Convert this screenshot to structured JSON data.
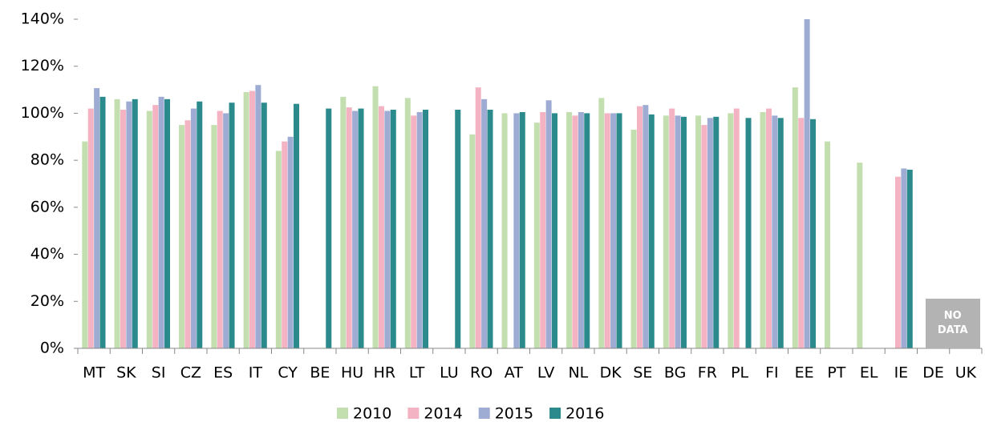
{
  "chart_data": {
    "type": "bar",
    "categories": [
      "MT",
      "SK",
      "SI",
      "CZ",
      "ES",
      "IT",
      "CY",
      "BE",
      "HU",
      "HR",
      "LT",
      "LU",
      "RO",
      "AT",
      "LV",
      "NL",
      "DK",
      "SE",
      "BG",
      "FR",
      "PL",
      "FI",
      "EE",
      "PT",
      "EL",
      "IE",
      "DE",
      "UK"
    ],
    "series": [
      {
        "name": "2010",
        "color": "#c3dfb0",
        "values": [
          88,
          106,
          101,
          95,
          95,
          109,
          84,
          null,
          107,
          111.5,
          106.5,
          null,
          91,
          100,
          96,
          100.5,
          106.5,
          93,
          99,
          99,
          100,
          100.5,
          111,
          88,
          79,
          null,
          null,
          null
        ]
      },
      {
        "name": "2014",
        "color": "#f4b3c2",
        "values": [
          102,
          101.5,
          103.5,
          97,
          101,
          109.5,
          88,
          null,
          102.5,
          103,
          99,
          null,
          111,
          null,
          100.5,
          99,
          100,
          103,
          102,
          95,
          102,
          102,
          98,
          null,
          null,
          73,
          null,
          null
        ]
      },
      {
        "name": "2015",
        "color": "#9eacd4",
        "values": [
          110.7,
          105,
          107,
          102,
          100,
          112,
          90,
          null,
          101,
          101,
          100.5,
          null,
          106,
          100,
          105.5,
          100.5,
          100,
          103.5,
          99,
          98,
          null,
          99,
          140,
          null,
          null,
          76.5,
          null,
          null
        ]
      },
      {
        "name": "2016",
        "color": "#2a8a8c",
        "values": [
          107,
          106,
          106,
          105,
          104.5,
          104.5,
          104,
          102,
          102,
          101.5,
          101.5,
          101.5,
          101.5,
          100.5,
          100,
          100,
          100,
          99.5,
          98.5,
          98.5,
          98,
          98,
          97.5,
          null,
          null,
          76,
          null,
          null
        ]
      }
    ],
    "ylim": [
      0,
      140
    ],
    "yticks": [
      {
        "value": 0,
        "label": "0%"
      },
      {
        "value": 20,
        "label": "20%"
      },
      {
        "value": 40,
        "label": "40%"
      },
      {
        "value": 60,
        "label": "60%"
      },
      {
        "value": 80,
        "label": "80%"
      },
      {
        "value": 100,
        "label": "100%"
      },
      {
        "value": 120,
        "label": "120%"
      },
      {
        "value": 140,
        "label": "140%"
      }
    ],
    "annotation": "NO DATA",
    "grid": false
  }
}
